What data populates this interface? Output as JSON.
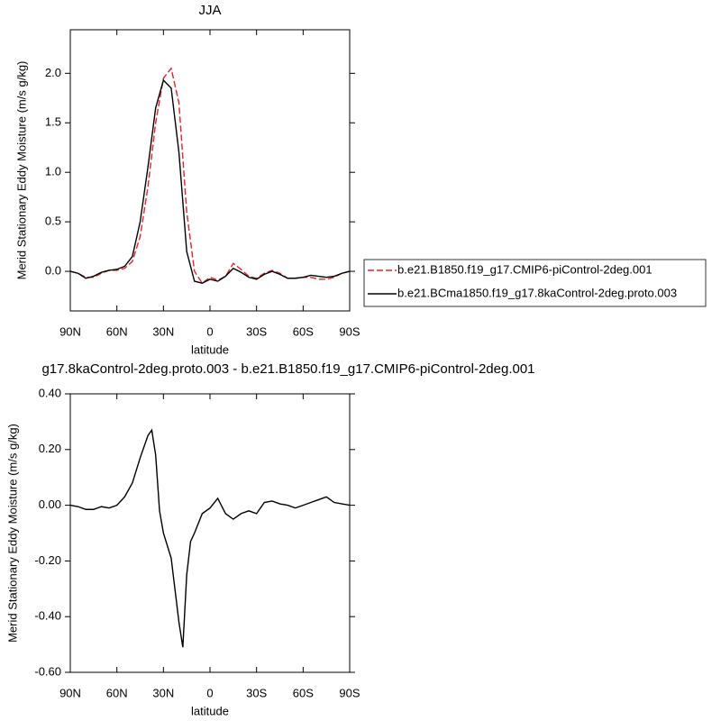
{
  "chart_data": [
    {
      "type": "line",
      "title": "JJA",
      "xlabel": "latitude",
      "ylabel": "Merid Stationary Eddy Moisture (m/s g/kg)",
      "x": [
        90,
        85,
        80,
        75,
        70,
        65,
        60,
        55,
        50,
        45,
        40,
        35,
        30,
        25,
        20,
        15,
        10,
        5,
        0,
        -5,
        -10,
        -15,
        -20,
        -25,
        -30,
        -35,
        -40,
        -45,
        -50,
        -55,
        -60,
        -65,
        -70,
        -75,
        -80,
        -85,
        -90
      ],
      "series": [
        {
          "name": "b.e21.B1850.f19_g17.CMIP6-piControl-2deg.001",
          "color": "#e8202a",
          "dash": true,
          "values": [
            0.0,
            -0.02,
            -0.06,
            -0.06,
            -0.02,
            0.01,
            0.01,
            0.03,
            0.1,
            0.35,
            0.85,
            1.5,
            1.95,
            2.05,
            1.7,
            0.6,
            0.0,
            -0.12,
            -0.06,
            -0.09,
            -0.05,
            0.08,
            0.02,
            -0.05,
            -0.07,
            -0.02,
            0.01,
            -0.02,
            -0.07,
            -0.07,
            -0.06,
            -0.06,
            -0.08,
            -0.08,
            -0.06,
            -0.02,
            0.0
          ]
        },
        {
          "name": "b.e21.BCma1850.f19_g17.8kaControl-2deg.proto.003",
          "color": "#000000",
          "dash": false,
          "values": [
            0.0,
            -0.02,
            -0.07,
            -0.05,
            -0.01,
            0.01,
            0.02,
            0.05,
            0.15,
            0.5,
            1.05,
            1.65,
            1.93,
            1.85,
            1.2,
            0.2,
            -0.1,
            -0.12,
            -0.08,
            -0.1,
            -0.05,
            0.03,
            -0.01,
            -0.06,
            -0.08,
            -0.03,
            0.0,
            -0.03,
            -0.07,
            -0.07,
            -0.06,
            -0.04,
            -0.05,
            -0.06,
            -0.05,
            -0.02,
            0.0
          ]
        }
      ],
      "xlim": [
        90,
        -90
      ],
      "xticks": [
        {
          "value": 90,
          "label": "90N"
        },
        {
          "value": 60,
          "label": "60N"
        },
        {
          "value": 30,
          "label": "30N"
        },
        0,
        {
          "value": -30,
          "label": "30S"
        },
        {
          "value": -60,
          "label": "60S"
        },
        {
          "value": -90,
          "label": "90S"
        }
      ],
      "ylim": [
        -0.4,
        2.44
      ],
      "yticks": [
        {
          "value": 0,
          "label": "0.0"
        },
        0.5,
        {
          "value": 1,
          "label": "1.0"
        },
        1.5,
        {
          "value": 2,
          "label": "2.0"
        }
      ],
      "legend": "right"
    },
    {
      "type": "line",
      "title": "g17.8kaControl-2deg.proto.003 - b.e21.B1850.f19_g17.CMIP6-piControl-2deg.001",
      "xlabel": "latitude",
      "ylabel": "Merid Stationary Eddy Moisture (m/s g/kg)",
      "x": [
        90,
        85,
        80,
        75,
        70,
        65,
        60,
        55,
        50,
        45,
        40,
        37.5,
        35,
        32.5,
        30,
        25,
        20,
        17.5,
        15,
        12.5,
        10,
        5,
        0,
        -5,
        -10,
        -15,
        -20,
        -25,
        -30,
        -35,
        -40,
        -45,
        -50,
        -55,
        -60,
        -65,
        -70,
        -75,
        -80,
        -85,
        -90
      ],
      "color": "#000000",
      "values": [
        0.0,
        -0.005,
        -0.015,
        -0.015,
        -0.005,
        -0.01,
        0.0,
        0.03,
        0.08,
        0.17,
        0.25,
        0.27,
        0.18,
        -0.02,
        -0.1,
        -0.19,
        -0.42,
        -0.51,
        -0.25,
        -0.13,
        -0.1,
        -0.03,
        -0.01,
        0.025,
        -0.03,
        -0.05,
        -0.03,
        -0.02,
        -0.03,
        0.01,
        0.015,
        0.005,
        0.0,
        -0.01,
        0.0,
        0.01,
        0.02,
        0.03,
        0.01,
        0.005,
        0.0
      ],
      "xlim": [
        90,
        -90
      ],
      "xticks": [
        {
          "value": 90,
          "label": "90N"
        },
        {
          "value": 60,
          "label": "60N"
        },
        {
          "value": 30,
          "label": "30N"
        },
        0,
        {
          "value": -30,
          "label": "30S"
        },
        {
          "value": -60,
          "label": "60S"
        },
        {
          "value": -90,
          "label": "90S"
        }
      ],
      "ylim": [
        -0.6,
        0.4
      ],
      "yticks": [
        {
          "value": -0.6,
          "label": "-0.60"
        },
        {
          "value": -0.4,
          "label": "-0.40"
        },
        {
          "value": -0.2,
          "label": "-0.20"
        },
        {
          "value": 0,
          "label": "0.00"
        },
        {
          "value": 0.2,
          "label": "0.20"
        },
        {
          "value": 0.4,
          "label": "0.40"
        }
      ]
    }
  ]
}
